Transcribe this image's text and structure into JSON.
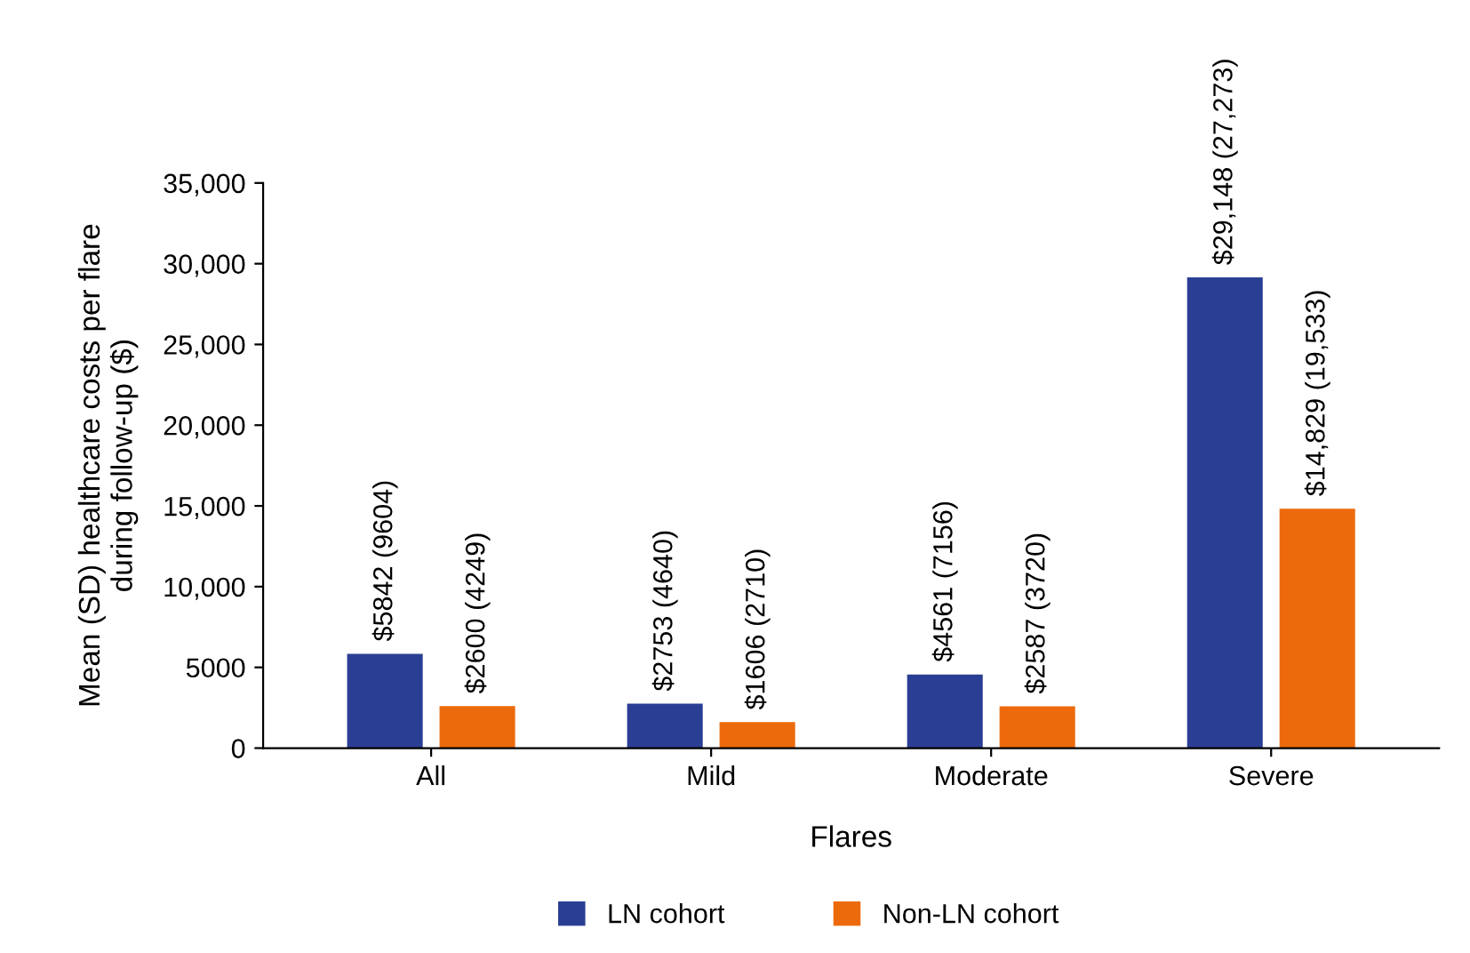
{
  "chart_data": {
    "type": "bar",
    "xlabel": "Flares",
    "ylabel": "Mean (SD) healthcare costs per flare\nduring follow-up ($)",
    "categories": [
      "All",
      "Mild",
      "Moderate",
      "Severe"
    ],
    "series": [
      {
        "name": "LN cohort",
        "color": "#2a3f94",
        "values": [
          5842,
          2753,
          4561,
          29148
        ],
        "value_labels": [
          "$5842 (9604)",
          "$2753 (4640)",
          "$4561 (7156)",
          "$29,148 (27,273)"
        ]
      },
      {
        "name": "Non-LN cohort",
        "color": "#ec6a0c",
        "values": [
          2600,
          1606,
          2587,
          14829
        ],
        "value_labels": [
          "$2600 (4249)",
          "$1606 (2710)",
          "$2587 (3720)",
          "$14,829 (19,533)"
        ]
      }
    ],
    "ylim": [
      0,
      35000
    ],
    "yticks": [
      0,
      5000,
      {
        "value": 10000,
        "label": "10,000"
      },
      {
        "value": 15000,
        "label": "15,000"
      },
      {
        "value": 20000,
        "label": "20,000"
      },
      {
        "value": 25000,
        "label": "25,000"
      },
      {
        "value": 30000,
        "label": "30,000"
      },
      {
        "value": 35000,
        "label": "35,000"
      }
    ],
    "grid": false,
    "legend": "bottom"
  }
}
